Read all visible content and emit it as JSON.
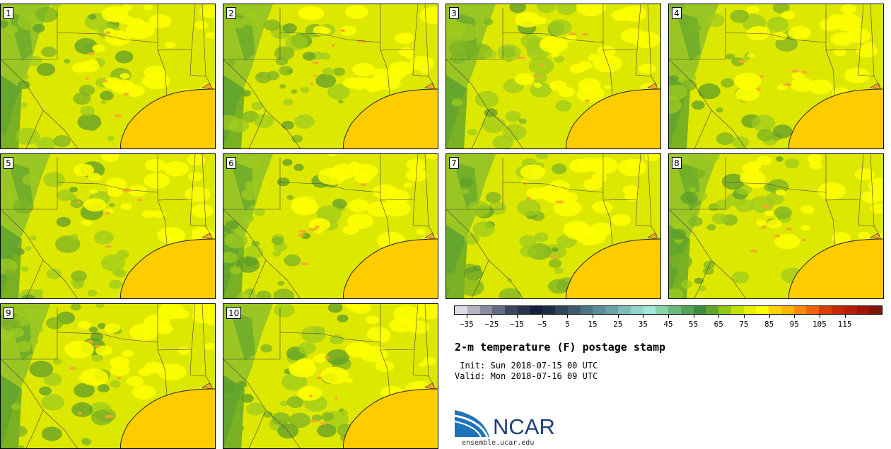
{
  "members": [
    {
      "label": "1"
    },
    {
      "label": "2"
    },
    {
      "label": "3"
    },
    {
      "label": "4"
    },
    {
      "label": "5"
    },
    {
      "label": "6"
    },
    {
      "label": "7"
    },
    {
      "label": "8"
    },
    {
      "label": "9"
    },
    {
      "label": "10"
    }
  ],
  "colorbar": {
    "colors": [
      "#dcdce6",
      "#b4b4c0",
      "#8c8ca0",
      "#646e82",
      "#3c4660",
      "#28324a",
      "#141e3c",
      "#1e2a46",
      "#2e4658",
      "#3c5a6c",
      "#4a7486",
      "#5a8c9a",
      "#6aa2a8",
      "#7ebcb8",
      "#8fd4c8",
      "#9ee8d8",
      "#86d4a8",
      "#6abc7c",
      "#52a45a",
      "#3c8c3c",
      "#60a828",
      "#90c814",
      "#c0e000",
      "#e6f000",
      "#ffff00",
      "#ffd200",
      "#ffb400",
      "#ff8c00",
      "#f06400",
      "#dc3c00",
      "#c82800",
      "#b41e00",
      "#a01400",
      "#821400"
    ],
    "tick_labels": [
      "−35",
      "−25",
      "−15",
      "−5",
      "5",
      "15",
      "25",
      "35",
      "45",
      "55",
      "65",
      "75",
      "85",
      "95",
      "105",
      "115"
    ]
  },
  "title": "2-m temperature (F) postage stamp",
  "init_line": " Init: Sun 2018-07-15 00 UTC",
  "valid_line": "Valid: Mon 2018-07-16 09 UTC",
  "logo": {
    "text": "NCAR",
    "url": "ensemble.ucar.edu"
  }
}
